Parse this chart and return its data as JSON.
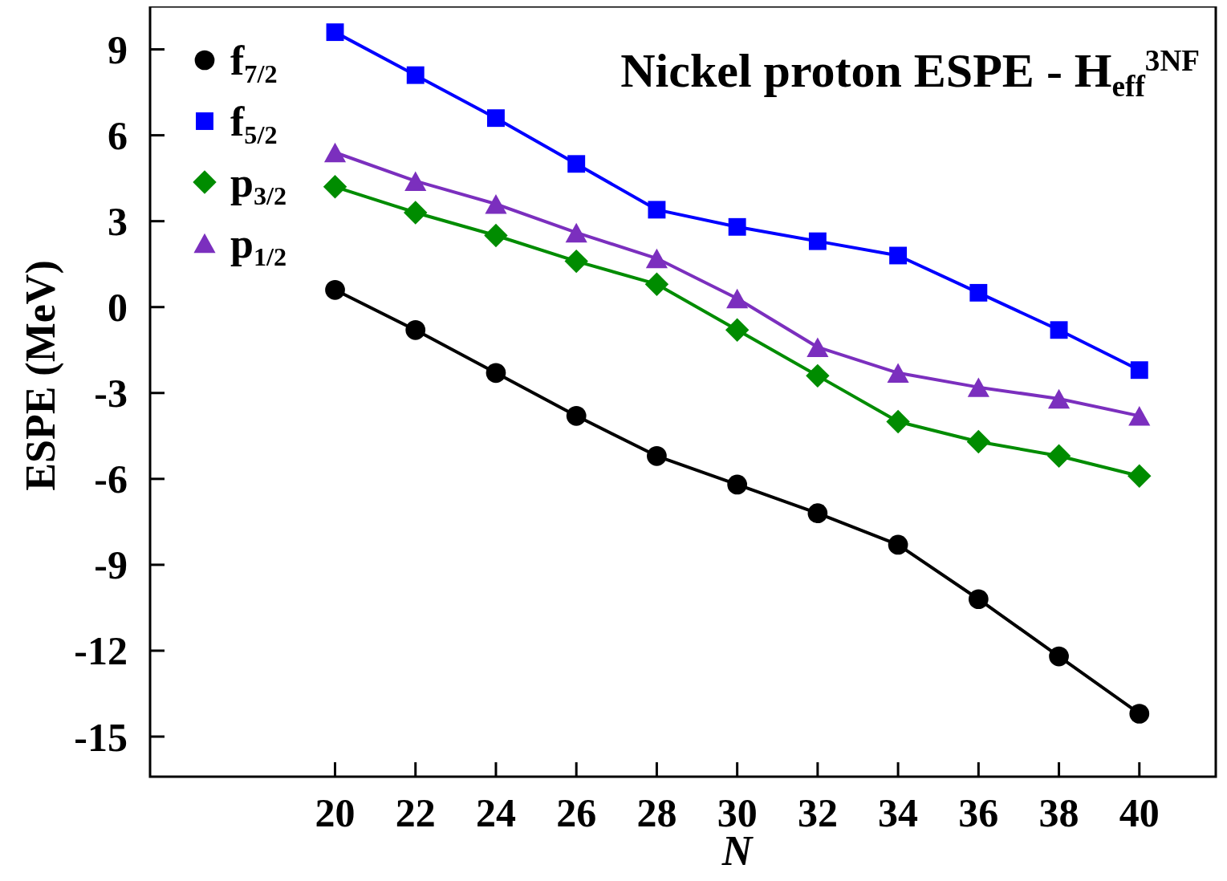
{
  "chart_data": {
    "type": "line",
    "title": "Nickel proton ESPE - H$_{eff}$$^{3NF}$",
    "xlabel": "N",
    "ylabel": "ESPE (MeV)",
    "x": [
      20,
      22,
      24,
      26,
      28,
      30,
      32,
      34,
      36,
      38,
      40
    ],
    "xlim": [
      15.4,
      41.9
    ],
    "xticks": [
      20,
      22,
      24,
      26,
      28,
      30,
      32,
      34,
      36,
      38,
      40
    ],
    "ylim": [
      -16.4,
      10.5
    ],
    "yticks": [
      -15,
      -12,
      -9,
      -6,
      -3,
      0,
      3,
      6,
      9
    ],
    "grid": false,
    "legend": "top left",
    "line_style": "solid",
    "series": [
      {
        "name": "f$_{7/2}$",
        "color": "#000000",
        "marker": "circle",
        "values": [
          0.6,
          -0.8,
          -2.3,
          -3.8,
          -5.2,
          -6.2,
          -7.2,
          -8.3,
          -10.2,
          -12.2,
          -14.2
        ]
      },
      {
        "name": "f$_{5/2}$",
        "color": "#0000ff",
        "marker": "square",
        "values": [
          9.6,
          8.1,
          6.6,
          5.0,
          3.4,
          2.8,
          2.3,
          1.8,
          0.5,
          -0.8,
          -2.2
        ]
      },
      {
        "name": "p$_{3/2}$",
        "color": "#008c00",
        "marker": "diamond",
        "values": [
          4.2,
          3.3,
          2.5,
          1.6,
          0.8,
          -0.8,
          -2.4,
          -4.0,
          -4.7,
          -5.2,
          -5.9
        ]
      },
      {
        "name": "p$_{1/2}$",
        "color": "#7b2fbe",
        "marker": "triangle",
        "values": [
          5.4,
          4.4,
          3.6,
          2.6,
          1.7,
          0.3,
          -1.4,
          -2.3,
          -2.8,
          -3.2,
          -3.8
        ]
      }
    ]
  }
}
